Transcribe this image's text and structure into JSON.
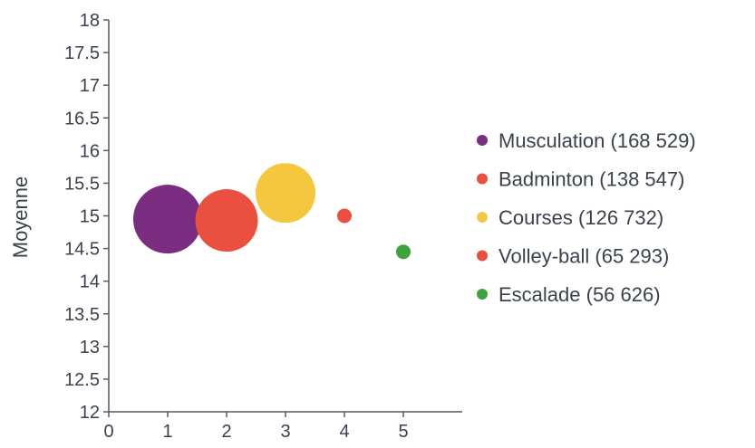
{
  "chart_data": {
    "type": "scatter",
    "subtype": "bubble",
    "title": "",
    "xlabel": "",
    "ylabel": "Moyenne",
    "xlim": [
      0,
      6
    ],
    "ylim": [
      12,
      18
    ],
    "x_ticks": [
      "0",
      "1",
      "2",
      "3",
      "4",
      "5"
    ],
    "y_ticks": [
      "12",
      "12.5",
      "13",
      "13.5",
      "14",
      "14.5",
      "15",
      "15.5",
      "16",
      "16.5",
      "17",
      "17.5",
      "18"
    ],
    "grid": false,
    "legend_position": "right",
    "series": [
      {
        "name": "Musculation",
        "legend_label": "Musculation (168 529)",
        "x": 1,
        "y": 14.95,
        "size": 168529,
        "color": "#7b2d82"
      },
      {
        "name": "Badminton",
        "legend_label": "Badminton (138 547)",
        "x": 2,
        "y": 14.93,
        "size": 138547,
        "color": "#e9503f"
      },
      {
        "name": "Courses",
        "legend_label": "Courses (126 732)",
        "x": 3,
        "y": 15.35,
        "size": 126732,
        "color": "#f5c73f"
      },
      {
        "name": "Volley-ball",
        "legend_label": "Volley-ball (65 293)",
        "x": 4,
        "y": 15.0,
        "size": 65293,
        "color": "#e9503f"
      },
      {
        "name": "Escalade",
        "legend_label": "Escalade (56 626)",
        "x": 5,
        "y": 14.45,
        "size": 56626,
        "color": "#3ca33f"
      }
    ]
  }
}
